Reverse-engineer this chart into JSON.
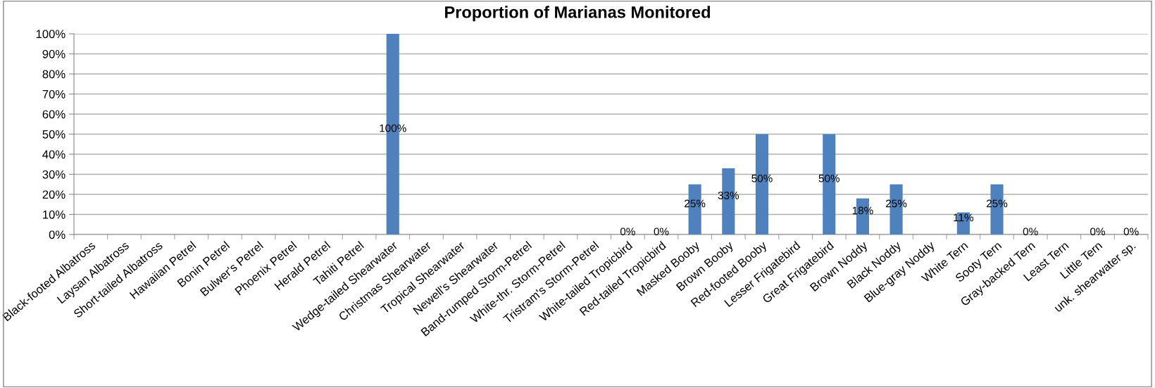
{
  "chart_data": {
    "type": "bar",
    "title": "Proportion of Marianas Monitored",
    "categories": [
      "Black-footed Albatross",
      "Laysan Albatross",
      "Short-tailed Albatross",
      "Hawaiian Petrel",
      "Bonin Petrel",
      "Bulwer's Petrel",
      "Phoenix Petrel",
      "Herald Petrel",
      "Tahiti Petrel",
      "Wedge-tailed Shearwater",
      "Christmas Shearwater",
      "Tropical Shearwater",
      "Newell's Shearwater",
      "Band-rumped Storm-Petrel",
      "White-thr. Storm-Petrel",
      "Tristram's Storm-Petrel",
      "White-tailed Tropicbird",
      "Red-tailed Tropicbird",
      "Masked Booby",
      "Brown Booby",
      "Red-footed Booby",
      "Lesser Frigatebird",
      "Great Frigatebird",
      "Brown Noddy",
      "Black Noddy",
      "Blue-gray Noddy",
      "White Tern",
      "Sooty Tern",
      "Gray-backed Tern",
      "Least Tern",
      "Little Tern",
      "unk. shearwater sp."
    ],
    "values": [
      null,
      null,
      null,
      null,
      null,
      null,
      null,
      null,
      null,
      1.0,
      null,
      null,
      null,
      null,
      null,
      null,
      0,
      0,
      0.25,
      0.33,
      0.5,
      null,
      0.5,
      0.18,
      0.25,
      null,
      0.11,
      0.25,
      0,
      null,
      0,
      0
    ],
    "value_labels": [
      null,
      null,
      null,
      null,
      null,
      null,
      null,
      null,
      null,
      "100%",
      null,
      null,
      null,
      null,
      null,
      null,
      "0%",
      "0%",
      "25%",
      "33%",
      "50%",
      null,
      "50%",
      "18%",
      "25%",
      null,
      "11%",
      "25%",
      "0%",
      null,
      "0%",
      "0%"
    ],
    "color": "#4f81bd",
    "ylim": [
      0,
      1
    ],
    "yticks": [
      {
        "value": 0,
        "label": "0%"
      },
      {
        "value": 0.1,
        "label": "10%"
      },
      {
        "value": 0.2,
        "label": "20%"
      },
      {
        "value": 0.3,
        "label": "30%"
      },
      {
        "value": 0.4,
        "label": "40%"
      },
      {
        "value": 0.5,
        "label": "50%"
      },
      {
        "value": 0.6,
        "label": "60%"
      },
      {
        "value": 0.7,
        "label": "70%"
      },
      {
        "value": 0.8,
        "label": "80%"
      },
      {
        "value": 0.9,
        "label": "90%"
      },
      {
        "value": 1,
        "label": "100%"
      }
    ],
    "grid": "y",
    "legend": false
  }
}
